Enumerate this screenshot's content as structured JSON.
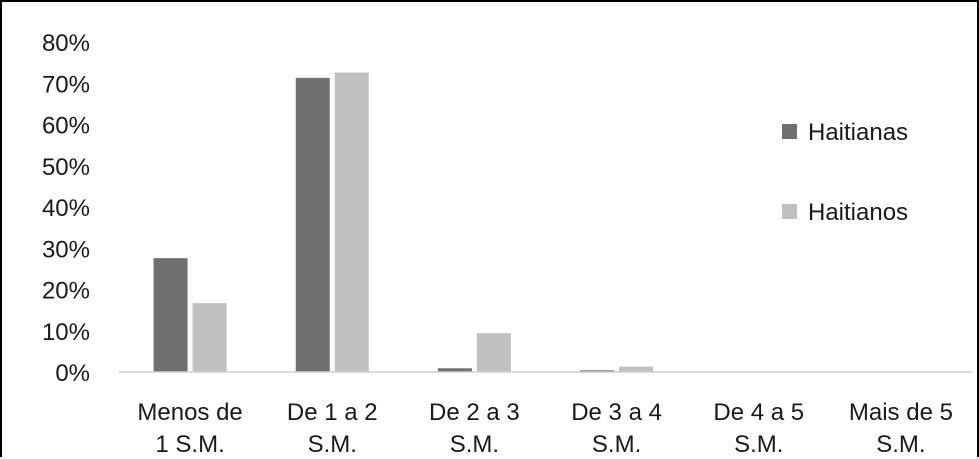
{
  "chart_data": {
    "type": "bar",
    "title": "",
    "xlabel": "",
    "ylabel": "",
    "ylim": [
      0,
      0.8
    ],
    "y_ticks": [
      "0%",
      "10%",
      "20%",
      "30%",
      "40%",
      "50%",
      "60%",
      "70%",
      "80%"
    ],
    "y_tick_values": [
      0,
      0.1,
      0.2,
      0.3,
      0.4,
      0.5,
      0.6,
      0.7,
      0.8
    ],
    "categories": [
      [
        "Menos de",
        "1 S.M."
      ],
      [
        "De 1 a 2",
        "S.M."
      ],
      [
        "De 2 a 3",
        "S.M."
      ],
      [
        "De 3 a 4",
        "S.M."
      ],
      [
        "De 4 a 5",
        "S.M."
      ],
      [
        "Mais de 5",
        "S.M."
      ]
    ],
    "series": [
      {
        "name": "Haitianas",
        "color": "#707070",
        "values": [
          0.276,
          0.713,
          0.009,
          0.004,
          0.0,
          0.0
        ]
      },
      {
        "name": "Haitianos",
        "color": "#c0c0c0",
        "values": [
          0.167,
          0.726,
          0.094,
          0.013,
          0.0,
          0.0
        ]
      }
    ],
    "grid": false,
    "legend_position": "right"
  }
}
